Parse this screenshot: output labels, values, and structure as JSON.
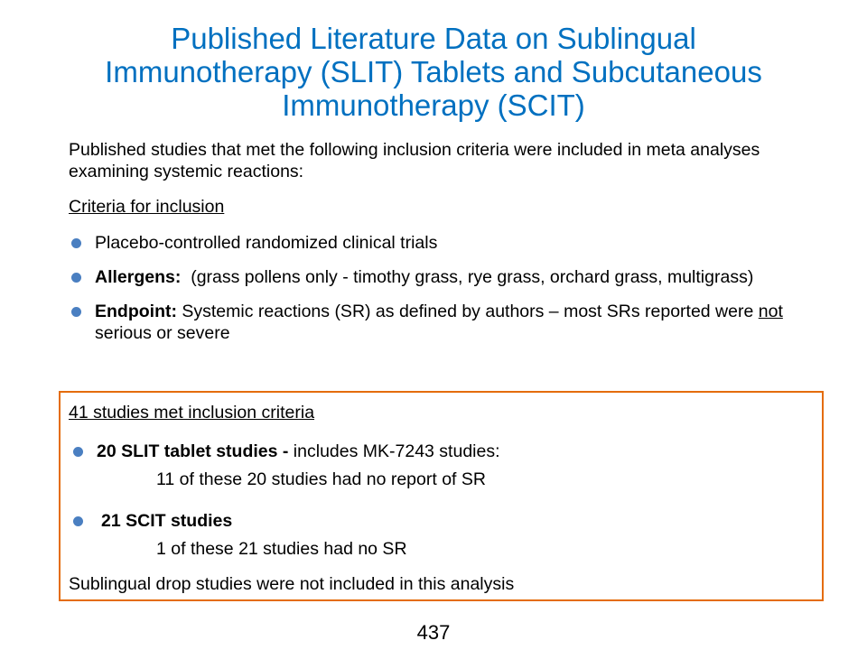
{
  "title": {
    "line1": "Published Literature Data on Sublingual",
    "line2": "Immunotherapy (SLIT) Tablets and Subcutaneous",
    "line3": "Immunotherapy (SCIT)"
  },
  "intro": "Published studies that met the following inclusion criteria were included in meta analyses examining systemic reactions:",
  "criteria": {
    "heading": "Criteria for inclusion",
    "items": [
      {
        "label": "",
        "text": "Placebo-controlled randomized clinical trials"
      },
      {
        "label": "Allergens:",
        "text": "  (grass pollens only - timothy grass, rye grass, orchard grass, multigrass)"
      },
      {
        "label": "Endpoint:",
        "text_before": " Systemic reactions (SR) as defined by authors – most SRs reported were ",
        "text_underlined": "not",
        "text_after": " serious or severe"
      }
    ]
  },
  "studies_box": {
    "heading": "41 studies met inclusion criteria",
    "slit": {
      "label": "20 SLIT tablet studies  -",
      "text": " includes MK-7243 studies:",
      "sub": "11 of these 20 studies had no report of SR"
    },
    "scit": {
      "label": "21 SCIT studies",
      "sub": "1 of these 21 studies had no SR"
    },
    "footer": "Sublingual drop studies were not included in this analysis"
  },
  "page_number": "437",
  "colors": {
    "title": "#0070c0",
    "bullet": "#4a7fc1",
    "box_border": "#e46c0a"
  }
}
